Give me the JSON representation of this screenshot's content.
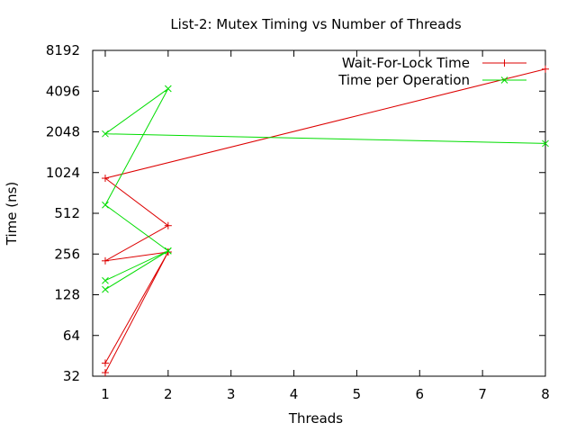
{
  "chart_data": {
    "type": "line",
    "title": "List-2: Mutex Timing vs Number of Threads",
    "xlabel": "Threads",
    "ylabel": "Time (ns)",
    "xlim": [
      0.8,
      8
    ],
    "ylim": [
      32,
      8192
    ],
    "yscale": "log2",
    "xticks": [
      1,
      2,
      3,
      4,
      5,
      6,
      7,
      8
    ],
    "yticks": [
      32,
      64,
      128,
      256,
      512,
      1024,
      2048,
      4096,
      8192
    ],
    "legend_position": "top-right",
    "grid": false,
    "series": [
      {
        "name": "Wait-For-Lock Time",
        "color": "#dd0000",
        "marker": "plus",
        "points": [
          [
            1,
            34
          ],
          [
            2,
            265
          ],
          [
            1,
            40
          ],
          [
            2,
            265
          ],
          [
            1,
            228
          ],
          [
            2,
            415
          ],
          [
            1,
            930
          ],
          [
            8,
            5960
          ]
        ]
      },
      {
        "name": "Time per Operation",
        "color": "#00dd00",
        "marker": "cross",
        "points": [
          [
            1,
            140
          ],
          [
            2,
            270
          ],
          [
            1,
            163
          ],
          [
            2,
            270
          ],
          [
            1,
            590
          ],
          [
            2,
            4270
          ],
          [
            1,
            1980
          ],
          [
            8,
            1680
          ]
        ]
      }
    ]
  }
}
